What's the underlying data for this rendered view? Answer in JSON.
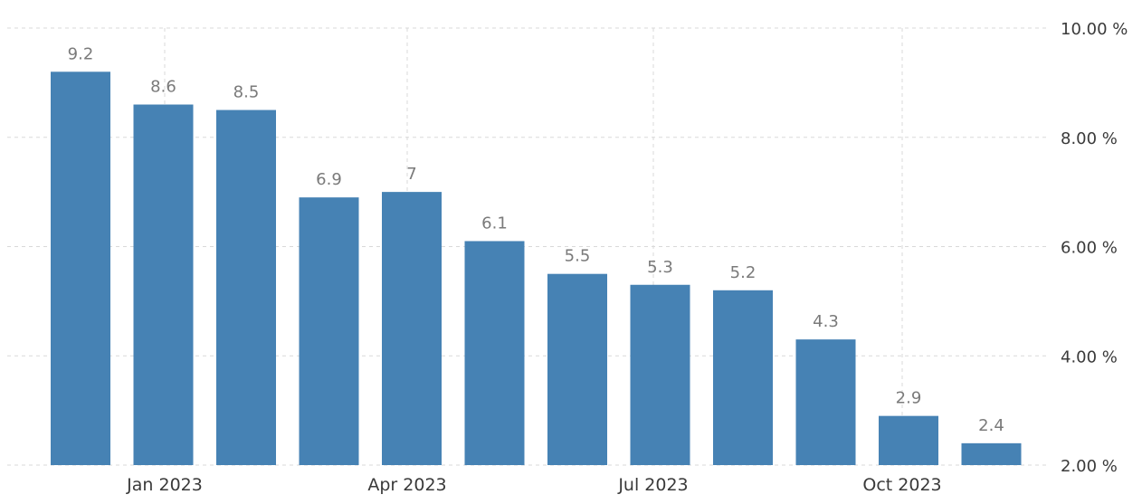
{
  "chart_data": {
    "type": "bar",
    "title": "",
    "xlabel": "",
    "ylabel": "",
    "x_tick_labels": [
      "Jan 2023",
      "Apr 2023",
      "Jul 2023",
      "Oct 2023"
    ],
    "x_tick_positions": [
      1,
      4,
      7,
      10
    ],
    "y_tick_labels": [
      "10.00 %",
      "8.00 %",
      "6.00 %",
      "4.00 %",
      "2.00 %"
    ],
    "y_ticks": [
      10,
      8,
      6,
      4,
      2
    ],
    "ylim": [
      2,
      10
    ],
    "y_axis_position": "right",
    "grid": true,
    "legend": "none",
    "bar_color": "#4682b4",
    "values": [
      9.2,
      8.6,
      8.5,
      6.9,
      7,
      6.1,
      5.5,
      5.3,
      5.2,
      4.3,
      2.9,
      2.4
    ],
    "value_labels": [
      "9.2",
      "8.6",
      "8.5",
      "6.9",
      "7",
      "6.1",
      "5.5",
      "5.3",
      "5.2",
      "4.3",
      "2.9",
      "2.4"
    ]
  }
}
